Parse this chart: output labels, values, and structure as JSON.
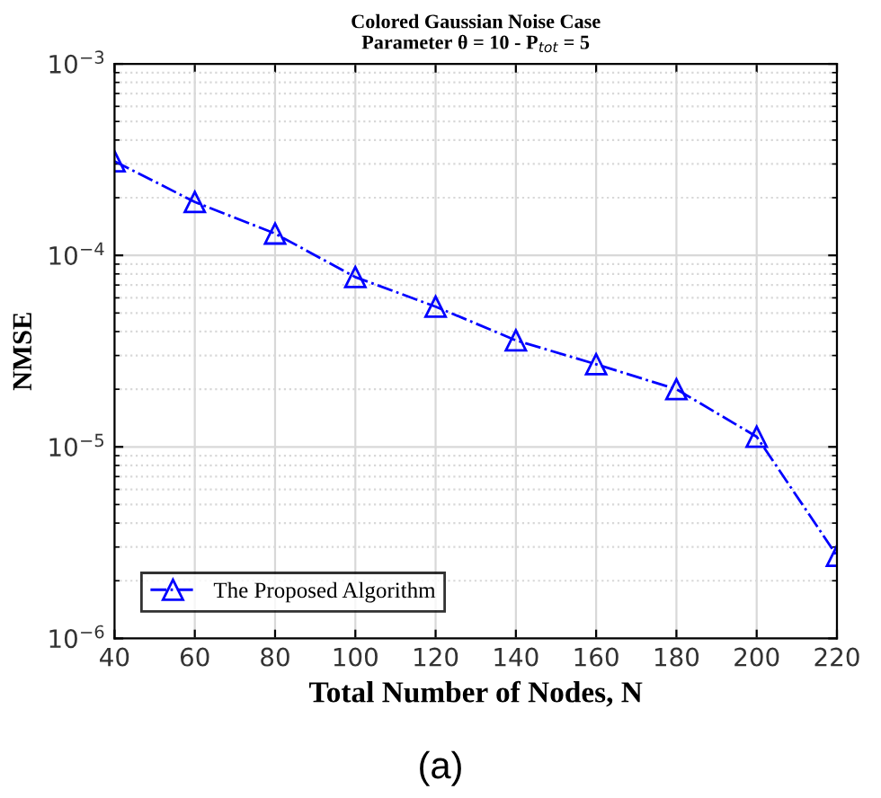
{
  "chart_data": {
    "type": "line",
    "title": "Colored Gaussian Noise Case\nParameter θ = 10 - P$_{tot}$ = 5",
    "xlabel": "Total Number of Nodes, N",
    "ylabel": "NMSE",
    "x": [
      40,
      60,
      80,
      100,
      120,
      140,
      160,
      180,
      200,
      220
    ],
    "series": [
      {
        "name": "The Proposed Algorithm",
        "color": "#0000ff",
        "values": [
          0.00031,
          0.00019,
          0.00013,
          7.7e-05,
          5.4e-05,
          3.6e-05,
          2.7e-05,
          2e-05,
          1.13e-05,
          2.7e-06
        ]
      }
    ],
    "xlim": [
      40,
      220
    ],
    "xticks": [
      40,
      60,
      80,
      100,
      120,
      140,
      160,
      180,
      200,
      220
    ],
    "ylim": [
      1e-06,
      0.001
    ],
    "yticks": [
      {
        "value": 1e-06,
        "label": "10$^{−6}$"
      },
      {
        "value": 1e-05,
        "label": "10$^{−5}$"
      },
      {
        "value": 0.0001,
        "label": "10$^{−4}$"
      },
      {
        "value": 0.001,
        "label": "10$^{−3}$"
      }
    ],
    "log": true,
    "grid": true,
    "legend": "bottom left",
    "marker": "triangle",
    "line_style": "dashdot",
    "annotations": [
      "(a)"
    ]
  }
}
